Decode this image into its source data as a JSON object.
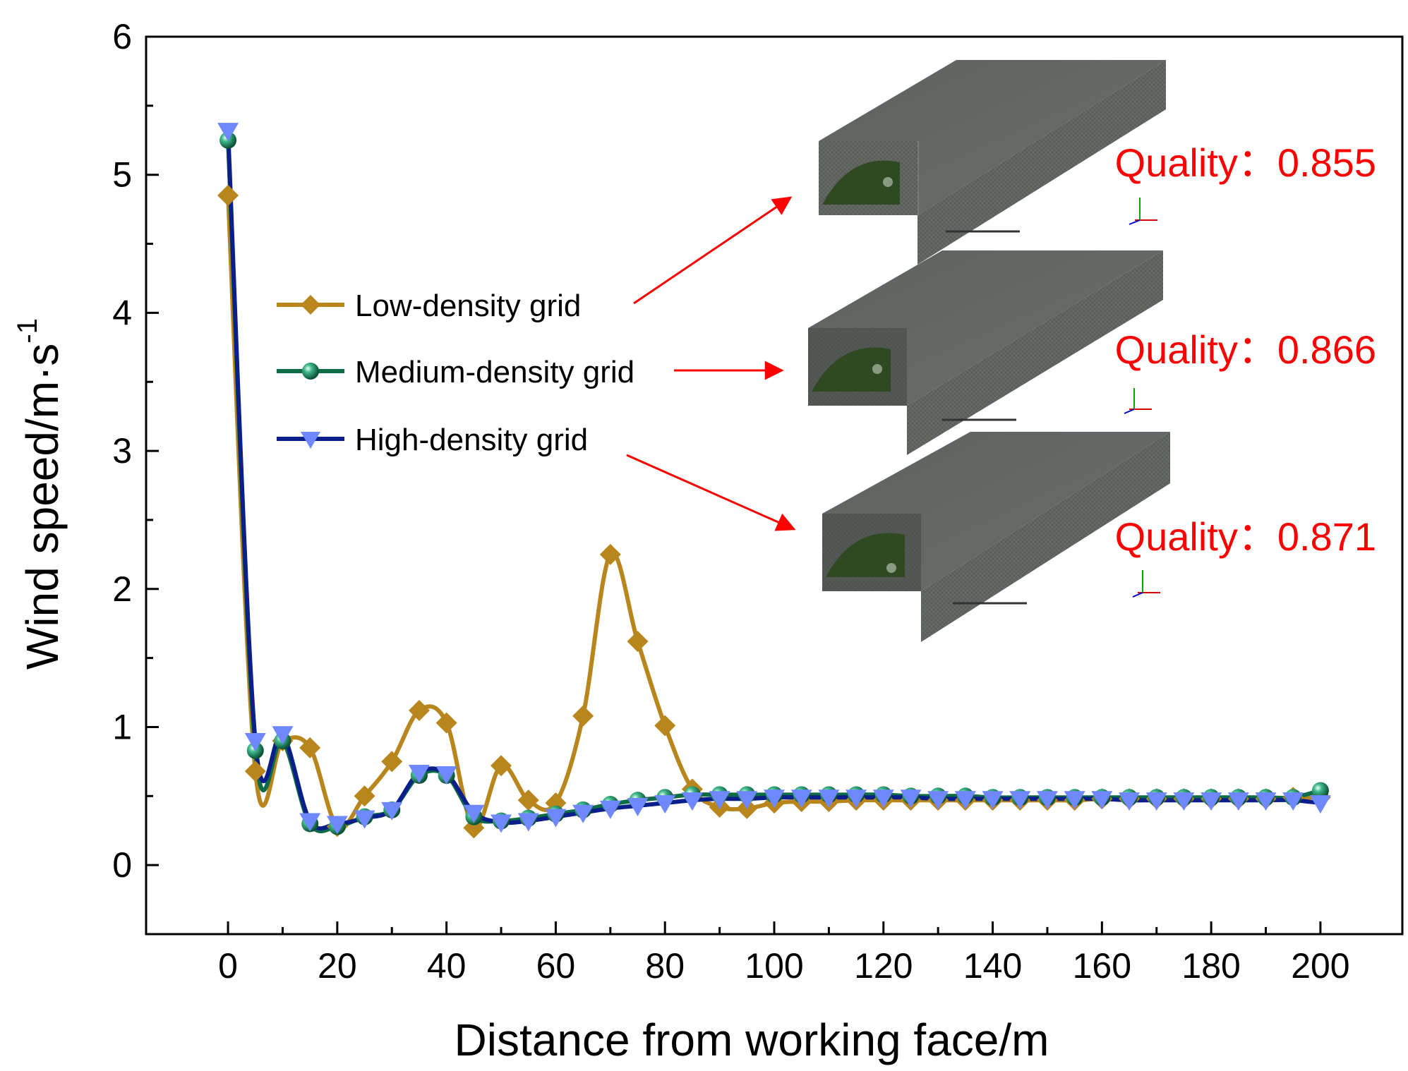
{
  "chart_data": {
    "type": "line",
    "xlabel": "Distance from working face/m",
    "ylabel_main": "Wind speed/m·s",
    "ylabel_sup": "-1",
    "xlim": [
      -15,
      215
    ],
    "ylim": [
      -0.5,
      6
    ],
    "xticks": [
      0,
      20,
      40,
      60,
      80,
      100,
      120,
      140,
      160,
      180,
      200
    ],
    "yticks": [
      0,
      1,
      2,
      3,
      4,
      5,
      6
    ],
    "x": [
      0,
      5,
      10,
      15,
      20,
      25,
      30,
      35,
      40,
      45,
      50,
      55,
      60,
      65,
      70,
      75,
      80,
      85,
      90,
      95,
      100,
      105,
      110,
      115,
      120,
      125,
      130,
      135,
      140,
      145,
      150,
      155,
      160,
      165,
      170,
      175,
      180,
      185,
      190,
      195,
      200
    ],
    "series": [
      {
        "name": "Low-density grid",
        "color": "#b8861c",
        "marker": "diamond",
        "values": [
          4.85,
          0.68,
          0.9,
          0.85,
          0.28,
          0.5,
          0.75,
          1.12,
          1.03,
          0.27,
          0.72,
          0.47,
          0.45,
          1.08,
          2.25,
          1.62,
          1.01,
          0.55,
          0.42,
          0.41,
          0.45,
          0.46,
          0.46,
          0.47,
          0.47,
          0.47,
          0.47,
          0.47,
          0.47,
          0.47,
          0.47,
          0.47,
          0.48,
          0.48,
          0.48,
          0.48,
          0.48,
          0.48,
          0.48,
          0.49,
          0.49
        ]
      },
      {
        "name": "Medium-density grid",
        "color": "#0d6b46",
        "marker": "sphere",
        "values": [
          5.25,
          0.83,
          0.9,
          0.3,
          0.28,
          0.35,
          0.4,
          0.65,
          0.65,
          0.35,
          0.32,
          0.34,
          0.37,
          0.4,
          0.44,
          0.47,
          0.49,
          0.51,
          0.51,
          0.51,
          0.51,
          0.51,
          0.51,
          0.51,
          0.51,
          0.5,
          0.5,
          0.5,
          0.49,
          0.49,
          0.49,
          0.49,
          0.49,
          0.49,
          0.49,
          0.49,
          0.49,
          0.49,
          0.49,
          0.49,
          0.54
        ]
      },
      {
        "name": "High-density grid",
        "color": "#0b1f8a",
        "marker": "triangle-down",
        "values": [
          5.32,
          0.9,
          0.95,
          0.32,
          0.3,
          0.34,
          0.4,
          0.67,
          0.66,
          0.38,
          0.31,
          0.32,
          0.35,
          0.38,
          0.41,
          0.43,
          0.45,
          0.47,
          0.48,
          0.48,
          0.49,
          0.49,
          0.49,
          0.49,
          0.49,
          0.49,
          0.48,
          0.48,
          0.48,
          0.48,
          0.48,
          0.48,
          0.48,
          0.47,
          0.47,
          0.47,
          0.47,
          0.47,
          0.47,
          0.47,
          0.45
        ]
      }
    ],
    "annotations": [
      {
        "label": "Quality：0.855",
        "target": "Low-density grid"
      },
      {
        "label": "Quality：0.866",
        "target": "Medium-density grid"
      },
      {
        "label": "Quality：0.871",
        "target": "High-density grid"
      }
    ],
    "colors": {
      "arrow": "#ff0000",
      "quality_text": "#ff0000"
    }
  }
}
